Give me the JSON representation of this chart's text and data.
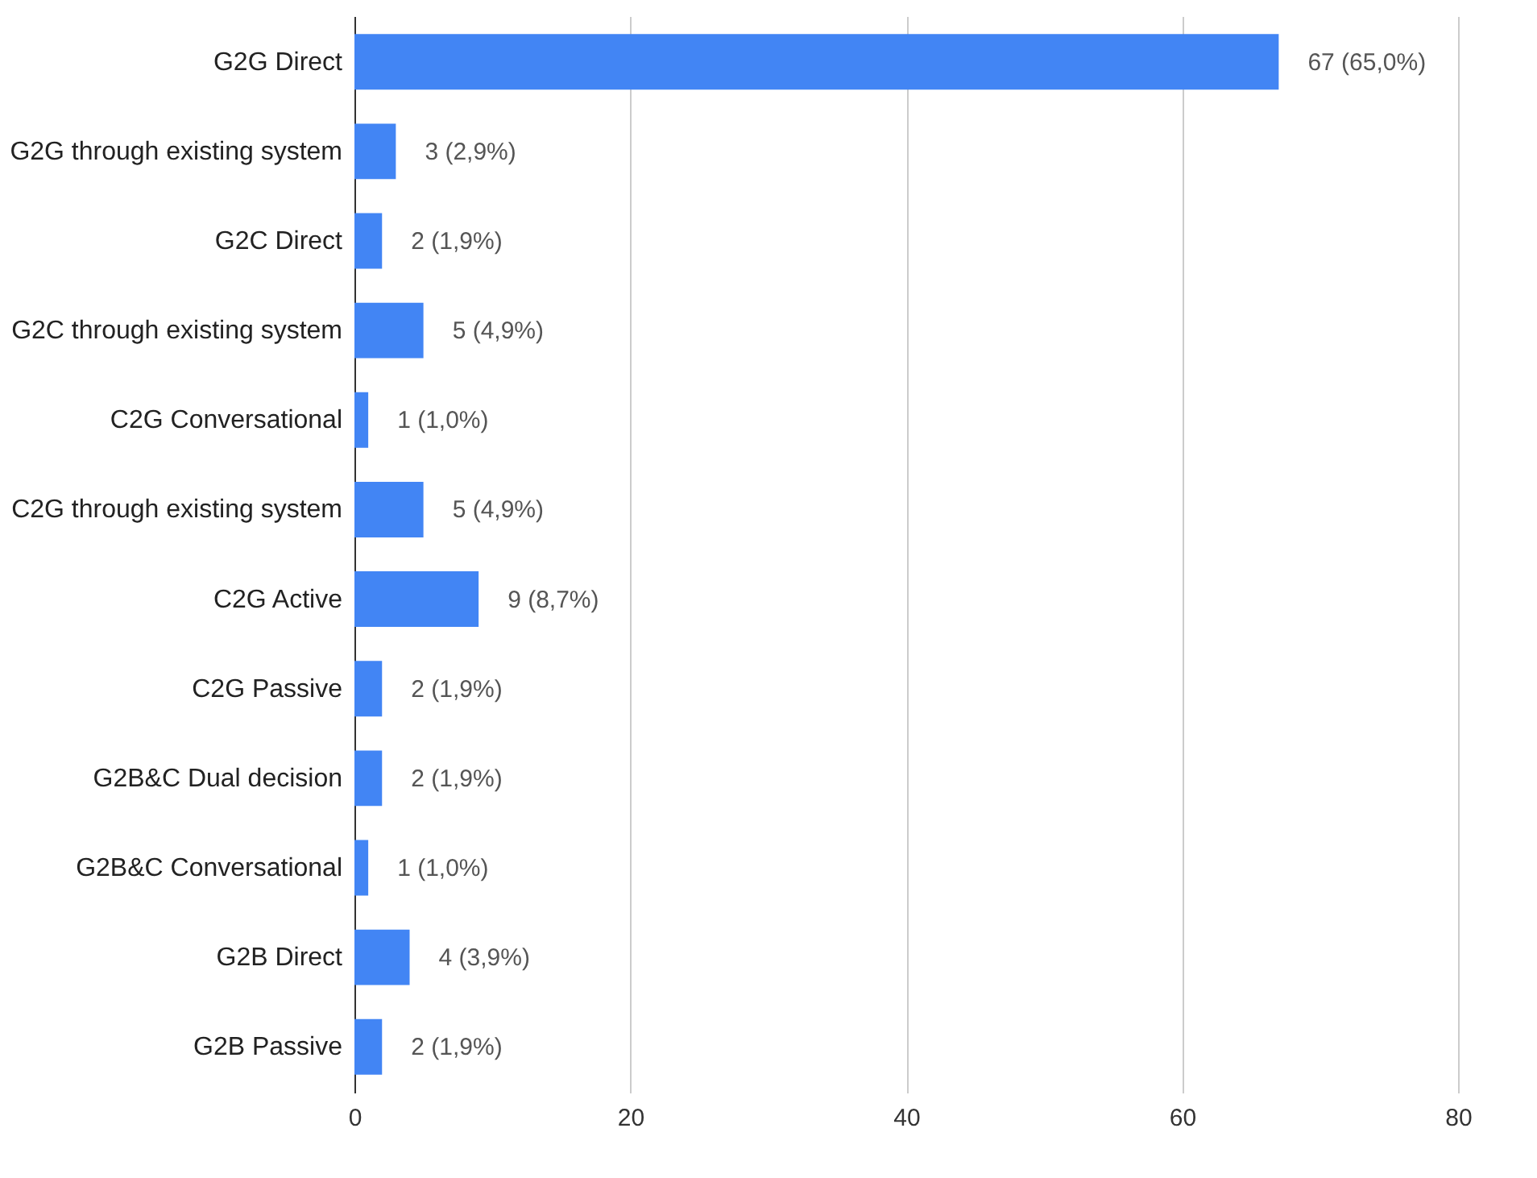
{
  "chart_data": {
    "type": "bar",
    "orientation": "horizontal",
    "categories": [
      "G2G Direct",
      "G2G through existing system",
      "G2C Direct",
      "G2C through existing system",
      "C2G Conversational",
      "C2G through existing system",
      "C2G Active",
      "C2G Passive",
      "G2B&C Dual decision",
      "G2B&C Conversational",
      "G2B Direct",
      "G2B Passive"
    ],
    "values": [
      67,
      3,
      2,
      5,
      1,
      5,
      9,
      2,
      2,
      1,
      4,
      2
    ],
    "value_labels": [
      "67 (65,0%)",
      "3 (2,9%)",
      "2 (1,9%)",
      "5 (4,9%)",
      "1 (1,0%)",
      "5 (4,9%)",
      "9 (8,7%)",
      "2 (1,9%)",
      "2 (1,9%)",
      "1 (1,0%)",
      "4 (3,9%)",
      "2 (1,9%)"
    ],
    "color": "#4285f4",
    "xlim": [
      0,
      80
    ],
    "xticks": [
      0,
      20,
      40,
      60,
      80
    ],
    "grid": "x"
  }
}
